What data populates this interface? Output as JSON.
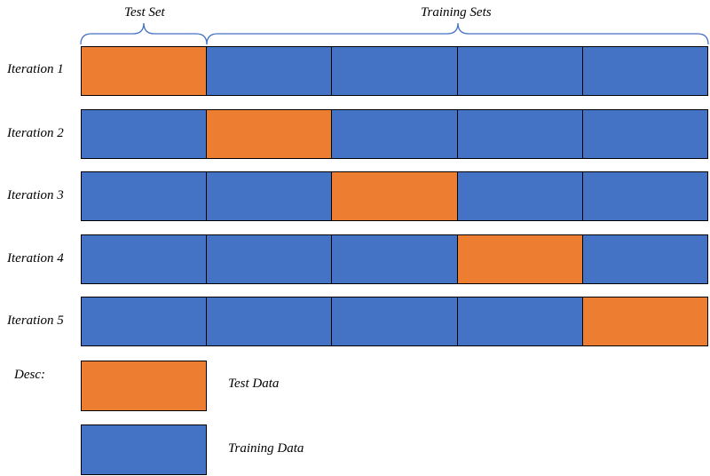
{
  "header": {
    "test_label": "Test Set",
    "train_label": "Training Sets"
  },
  "colors": {
    "test": "#ED7D31",
    "train": "#4472C4",
    "brace": "#4472C4"
  },
  "iterations": [
    {
      "label": "Iteration 1",
      "test_fold": 1
    },
    {
      "label": "Iteration 2",
      "test_fold": 2
    },
    {
      "label": "Iteration 3",
      "test_fold": 3
    },
    {
      "label": "Iteration 4",
      "test_fold": 4
    },
    {
      "label": "Iteration 5",
      "test_fold": 5
    }
  ],
  "folds": 5,
  "legend": {
    "title": "Desc:",
    "test": "Test Data",
    "train": "Training Data"
  }
}
